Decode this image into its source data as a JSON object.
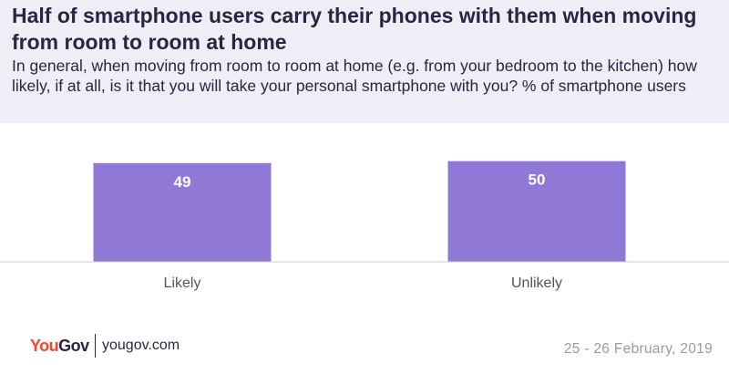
{
  "header": {
    "title": "Half of smartphone users carry their phones with them when moving from room to room at home",
    "subtitle": "In general, when moving from room to room at home (e.g. from your bedroom to the kitchen) how likely, if at all, is it that you will take your personal smartphone with you? % of smartphone users"
  },
  "chart_data": {
    "type": "bar",
    "title": "Half of smartphone users carry their phones with them when moving from room to room at home",
    "categories": [
      "Likely",
      "Unlikely"
    ],
    "values": [
      49,
      50
    ],
    "data_labels": [
      "49",
      "50"
    ],
    "xlabel": "",
    "ylabel": "",
    "ylim": [
      0,
      53
    ],
    "grid": false,
    "legend": "none",
    "bar_color": "#8f78d6",
    "baseline_color": "#cccccc",
    "label_color": "#ffffff",
    "category_label_color": "#555555"
  },
  "footer": {
    "logo_you": "You",
    "logo_gov": "Gov",
    "url": "yougov.com",
    "date": "25 - 26 February, 2019"
  },
  "colors": {
    "brand_red": "#ff412c",
    "brand_dark": "#2b2543",
    "header_bg": "#efedf5"
  }
}
